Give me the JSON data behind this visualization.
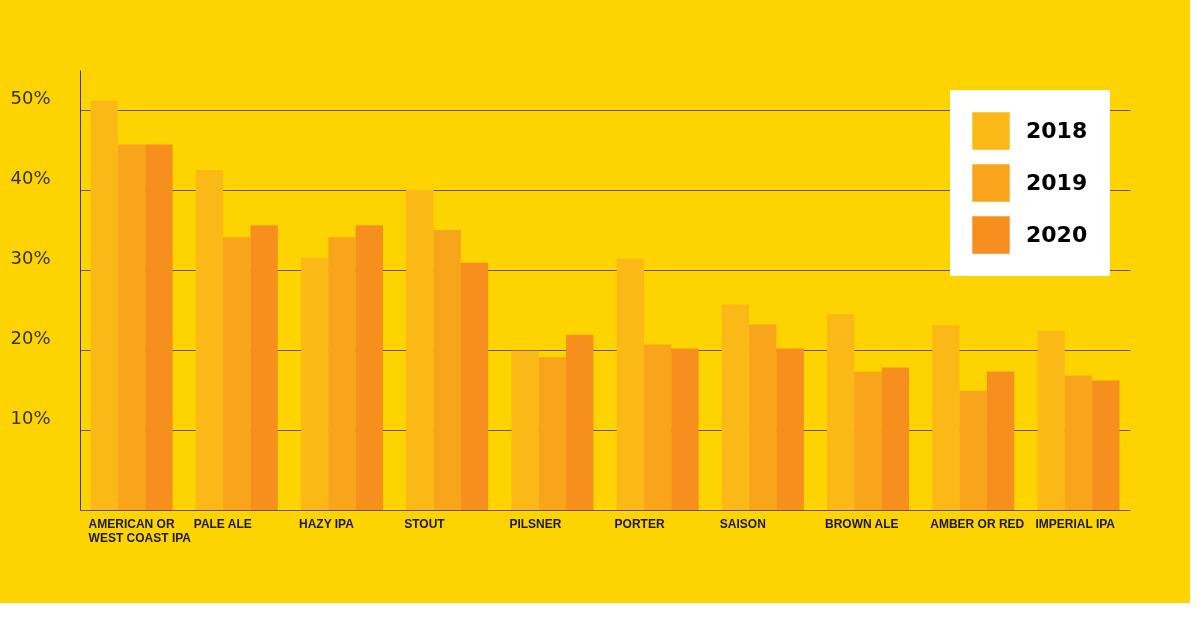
{
  "chart_data": {
    "type": "bar",
    "categories": [
      "AMERICAN OR WEST COAST IPA",
      "PALE ALE",
      "HAZY IPA",
      "STOUT",
      "PILSNER",
      "PORTER",
      "SAISON",
      "BROWN ALE",
      "AMBER OR RED",
      "IMPERIAL IPA"
    ],
    "series": [
      {
        "name": "2018",
        "color": "#fbb917",
        "values": [
          51.2,
          42.5,
          31.5,
          40.0,
          19.9,
          31.4,
          25.7,
          24.5,
          23.1,
          22.4
        ]
      },
      {
        "name": "2019",
        "color": "#f8a51c",
        "values": [
          45.7,
          34.1,
          34.1,
          35.0,
          19.1,
          20.7,
          23.2,
          17.3,
          14.9,
          16.8
        ]
      },
      {
        "name": "2020",
        "color": "#f68f1e",
        "values": [
          45.7,
          35.6,
          35.6,
          30.9,
          21.9,
          20.2,
          20.2,
          17.8,
          17.3,
          16.2
        ]
      }
    ],
    "ylim": [
      0,
      55
    ],
    "yticks": [
      {
        "value": 0,
        "label": null
      },
      {
        "value": 10,
        "label": "10%"
      },
      {
        "value": 20,
        "label": "20%"
      },
      {
        "value": 30,
        "label": "30%"
      },
      {
        "value": 40,
        "label": "40%"
      },
      {
        "value": 50,
        "label": "50%"
      }
    ],
    "grid": "y",
    "legend": "top right"
  }
}
